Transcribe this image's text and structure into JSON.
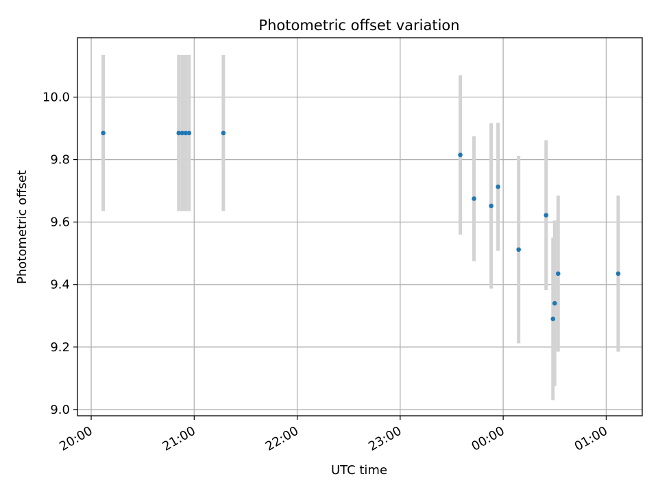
{
  "chart_data": {
    "type": "scatter",
    "title": "Photometric offset variation",
    "xlabel": "UTC time",
    "ylabel": "Photometric offset",
    "x_axis_type": "time",
    "xlim": [
      "19:52",
      "01:21"
    ],
    "ylim": [
      8.98,
      10.19
    ],
    "xticks": [
      {
        "value": "20:00",
        "label": "20:00"
      },
      {
        "value": "21:00",
        "label": "21:00"
      },
      {
        "value": "22:00",
        "label": "22:00"
      },
      {
        "value": "23:00",
        "label": "23:00"
      },
      {
        "value": "00:00",
        "label": "00:00"
      },
      {
        "value": "01:00",
        "label": "01:00"
      }
    ],
    "yticks": [
      9.0,
      9.2,
      9.4,
      9.6,
      9.8,
      10.0
    ],
    "ytick_labels": [
      "9.0",
      "9.2",
      "9.4",
      "9.6",
      "9.8",
      "10.0"
    ],
    "grid": true,
    "colors": {
      "point": "#1f77b4",
      "errorbar": "#d3d3d3"
    },
    "series": [
      {
        "points": [
          {
            "x": "20:07",
            "y": 9.885,
            "err": 0.25
          },
          {
            "x": "20:51",
            "y": 9.885,
            "err": 0.25
          },
          {
            "x": "20:53",
            "y": 9.885,
            "err": 0.25
          },
          {
            "x": "20:55",
            "y": 9.885,
            "err": 0.25
          },
          {
            "x": "20:57",
            "y": 9.885,
            "err": 0.25
          },
          {
            "x": "21:17",
            "y": 9.885,
            "err": 0.25
          },
          {
            "x": "23:35",
            "y": 9.815,
            "err": 0.255
          },
          {
            "x": "23:43",
            "y": 9.675,
            "err": 0.2
          },
          {
            "x": "23:53",
            "y": 9.652,
            "err": 0.265
          },
          {
            "x": "23:57",
            "y": 9.713,
            "err": 0.205
          },
          {
            "x": "00:09",
            "y": 9.512,
            "err": 0.3
          },
          {
            "x": "00:25",
            "y": 9.622,
            "err": 0.24
          },
          {
            "x": "00:29",
            "y": 9.29,
            "err": 0.26
          },
          {
            "x": "00:30",
            "y": 9.34,
            "err": 0.265
          },
          {
            "x": "00:32",
            "y": 9.435,
            "err": 0.25
          },
          {
            "x": "01:07",
            "y": 9.435,
            "err": 0.25
          }
        ]
      }
    ]
  }
}
